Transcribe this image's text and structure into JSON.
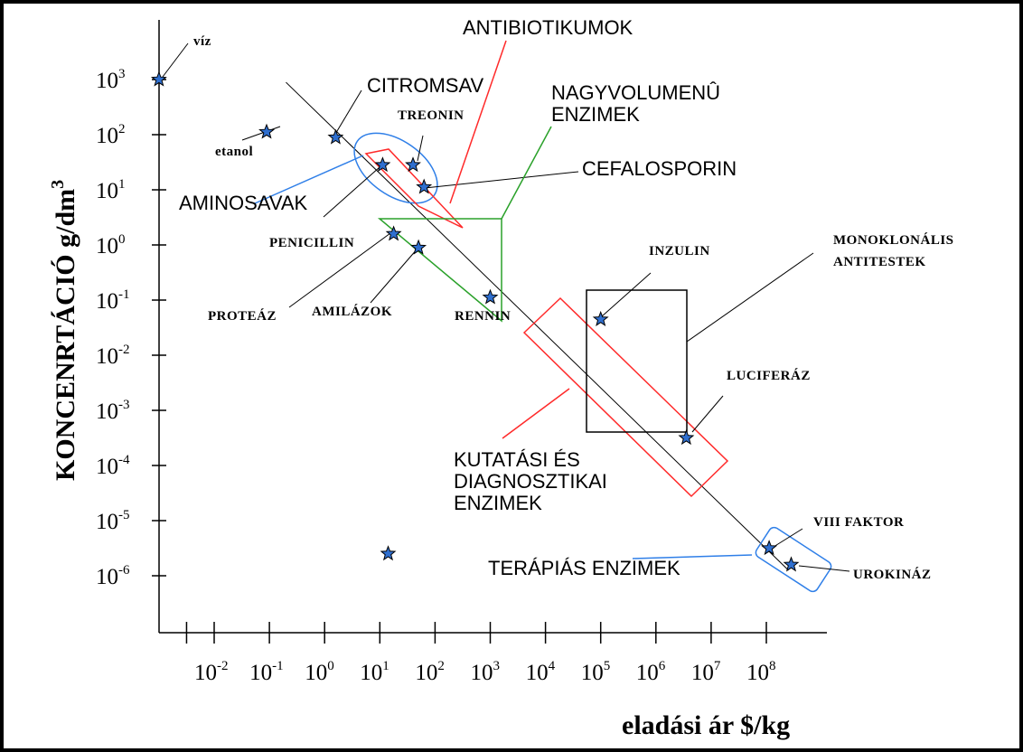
{
  "chart_data": {
    "type": "scatter",
    "title": "",
    "xlabel": "eladási ár $/kg",
    "ylabel_main": "KONCENRTÁCIÓ g/dm",
    "ylabel_sup": "3",
    "x_scale": "log",
    "y_scale": "log",
    "xlim_exp": [
      -3,
      8.5
    ],
    "ylim_exp": [
      -6.75,
      3.5
    ],
    "x_ticks": [
      {
        "base": "10",
        "exp": "-2",
        "value": -2
      },
      {
        "base": "10",
        "exp": "-1",
        "value": -1
      },
      {
        "base": "10",
        "exp": "0",
        "value": 0
      },
      {
        "base": "10",
        "exp": "1",
        "value": 1
      },
      {
        "base": "10",
        "exp": "2",
        "value": 2
      },
      {
        "base": "10",
        "exp": "3",
        "value": 3
      },
      {
        "base": "10",
        "exp": "4",
        "value": 4
      },
      {
        "base": "10",
        "exp": "5",
        "value": 5
      },
      {
        "base": "10",
        "exp": "6",
        "value": 6
      },
      {
        "base": "10",
        "exp": "7",
        "value": 7
      },
      {
        "base": "10",
        "exp": "8",
        "value": 8
      }
    ],
    "y_ticks": [
      {
        "base": "10",
        "exp": "3",
        "value": 3
      },
      {
        "base": "10",
        "exp": "2",
        "value": 2
      },
      {
        "base": "10",
        "exp": "1",
        "value": 1
      },
      {
        "base": "10",
        "exp": "0",
        "value": 0
      },
      {
        "base": "10",
        "exp": "-1",
        "value": -1
      },
      {
        "base": "10",
        "exp": "-2",
        "value": -2
      },
      {
        "base": "10",
        "exp": "-3",
        "value": -3
      },
      {
        "base": "10",
        "exp": "-4",
        "value": -4
      },
      {
        "base": "10",
        "exp": "-5",
        "value": -5
      },
      {
        "base": "10",
        "exp": "-6",
        "value": -6
      }
    ],
    "points_log10": [
      {
        "x": -3.0,
        "y": 3.0
      },
      {
        "x": -1.05,
        "y": 2.05
      },
      {
        "x": 0.2,
        "y": 1.95
      },
      {
        "x": 1.05,
        "y": 1.45
      },
      {
        "x": 1.6,
        "y": 1.45
      },
      {
        "x": 1.8,
        "y": 1.05
      },
      {
        "x": 1.25,
        "y": 0.2
      },
      {
        "x": 1.7,
        "y": -0.05
      },
      {
        "x": 3.0,
        "y": -0.95
      },
      {
        "x": 5.0,
        "y": -1.35
      },
      {
        "x": 6.55,
        "y": -3.5
      },
      {
        "x": 8.05,
        "y": -5.5
      },
      {
        "x": 8.45,
        "y": -5.8
      },
      {
        "x": 1.15,
        "y": -5.6
      }
    ],
    "trend_line_log10": [
      {
        "x": -0.7,
        "y": 2.95
      },
      {
        "x": 8.4,
        "y": -5.9
      }
    ],
    "labels": {
      "viz": "víz",
      "etanol": "etanol",
      "citromsav": "CITROMSAV",
      "treonin": "TREONIN",
      "aminosavak": "AMINOSAVAK",
      "penicillin": "PENICILLIN",
      "proteaz": "PROTEÁZ",
      "amilazok": "AMILÁZOK",
      "rennin": "RENNIN",
      "antibiotikumok": "ANTIBIOTIKUMOK",
      "nagyvolumenu_1": "NAGYVOLUMENÛ",
      "nagyvolumenu_2": "ENZIMEK",
      "cefalosporin": "CEFALOSPORIN",
      "inzulin": "INZULIN",
      "monoklonalis_1": "MONOKLONÁLIS",
      "monoklonalis_2": "ANTITESTEK",
      "luciferaz": "LUCIFERÁZ",
      "kutatasi_1": "KUTATÁSI ÉS",
      "kutatasi_2": "DIAGNOSZTIKAI",
      "kutatasi_3": "ENZIMEK",
      "viii_faktor": "VIII FAKTOR",
      "terapias": "TERÁPIÁS ENZIMEK",
      "urokinaz": "UROKINÁZ"
    },
    "colors": {
      "axis": "#000000",
      "star": "#2f6fcf",
      "red_group": "#ff2a2a",
      "green_group": "#2aa12a",
      "blue_group": "#2f7fe8",
      "black_group": "#000000"
    }
  }
}
